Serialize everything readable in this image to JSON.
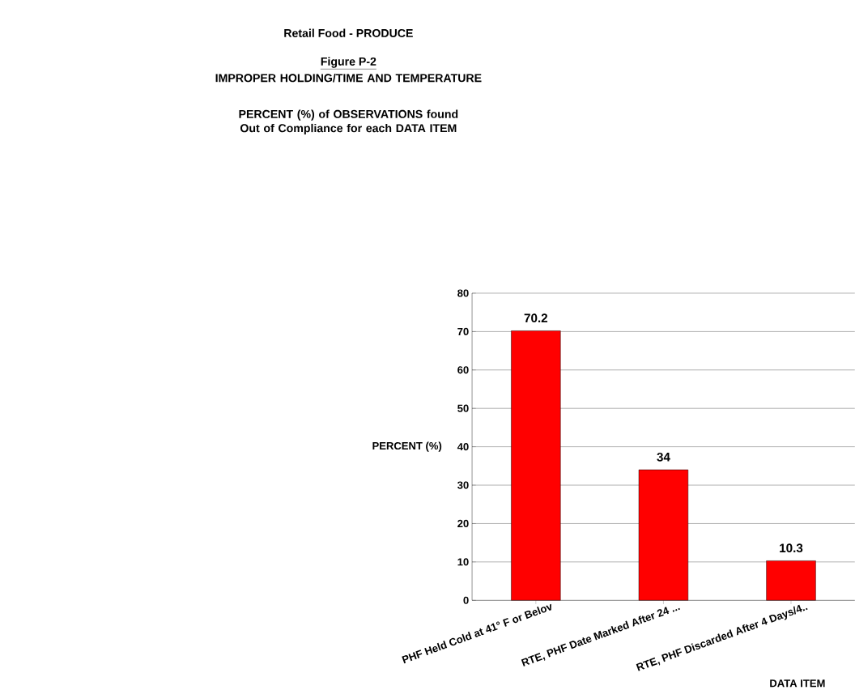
{
  "chart_data": {
    "type": "bar",
    "title": "Retail Food - PRODUCE",
    "subtitle": "Figure P-2",
    "annotations": [
      "IMPROPER HOLDING/TIME AND TEMPERATURE",
      "PERCENT (%) of OBSERVATIONS found Out of Compliance for each DATA ITEM"
    ],
    "categories": [
      "PHF Held Cold at 41° F or Belov",
      "RTE, PHF Date Marked After 24 ...",
      "RTE, PHF Discarded After 4 Days/4.."
    ],
    "values": [
      70.2,
      34,
      10.3
    ],
    "colors": [
      "#ff0000",
      "#ff0000",
      "#ff0000"
    ],
    "ylim": [
      0,
      80
    ],
    "yticks": [
      0,
      10,
      20,
      30,
      40,
      50,
      60,
      70,
      80
    ],
    "grid": "y",
    "data_labels": true,
    "xlabel": "DATA ITEM",
    "ylabel": "PERCENT (%)"
  }
}
